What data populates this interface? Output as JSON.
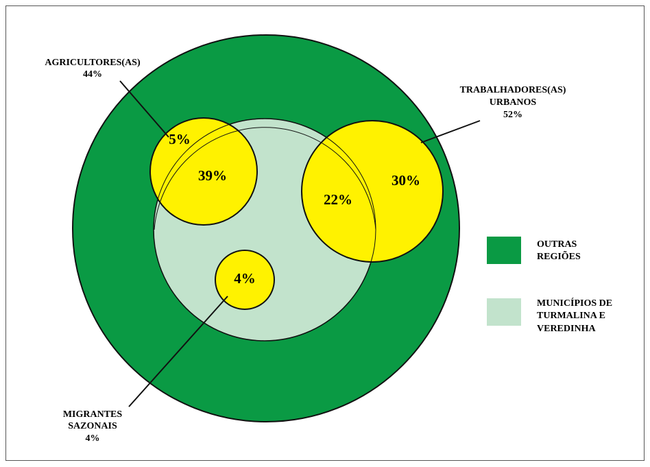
{
  "labels": [
    {
      "lines": [
        "AGRICULTORES(AS)",
        "44%"
      ]
    },
    {
      "lines": [
        "TRABALHADORES(AS)",
        "URBANOS",
        "52%"
      ]
    },
    {
      "lines": [
        "MIGRANTES",
        "SAZONAIS",
        "4%"
      ]
    }
  ],
  "regions": [
    "5%",
    "39%",
    "22%",
    "30%",
    "4%"
  ],
  "legend": [
    {
      "lines": [
        "OUTRAS",
        "REGIÕES"
      ]
    },
    {
      "lines": [
        "MUNICÍPIOS DE",
        "TURMALINA E",
        "VEREDINHA"
      ]
    }
  ]
}
